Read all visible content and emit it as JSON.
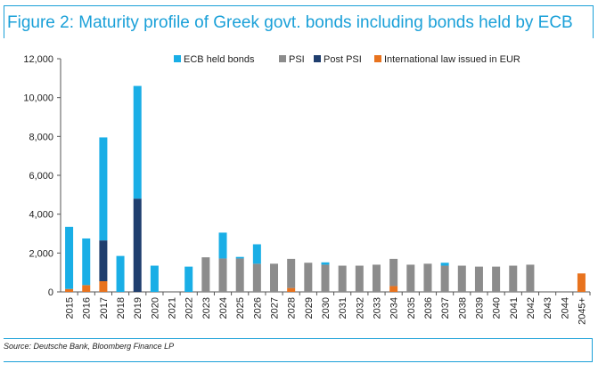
{
  "title": "Figure 2: Maturity profile of Greek govt. bonds including bonds held by ECB",
  "source": "Source: Deutsche Bank, Bloomberg Finance LP",
  "colors": {
    "accent": "#1aa0d8",
    "ecb": "#19aee6",
    "psi": "#8c8c8c",
    "post_psi": "#1f3e6e",
    "intl": "#e8731e",
    "axis": "#555555"
  },
  "chart_data": {
    "type": "bar",
    "stacked": true,
    "title": "Figure 2: Maturity profile of Greek govt. bonds including bonds held by ECB",
    "xlabel": "",
    "ylabel": "",
    "ylim": [
      0,
      12000
    ],
    "yticks": [
      0,
      2000,
      4000,
      6000,
      8000,
      10000,
      12000
    ],
    "ytick_labels": [
      "0",
      "2,000",
      "4,000",
      "6,000",
      "8,000",
      "10,000",
      "12,000"
    ],
    "grid": false,
    "legend_position": "top-right",
    "categories": [
      "2015",
      "2016",
      "2017",
      "2018",
      "2019",
      "2020",
      "2021",
      "2022",
      "2023",
      "2024",
      "2025",
      "2026",
      "2027",
      "2028",
      "2029",
      "2030",
      "2031",
      "2032",
      "2033",
      "2034",
      "2035",
      "2036",
      "2037",
      "2038",
      "2039",
      "2040",
      "2041",
      "2042",
      "2043",
      "2044",
      "2045+"
    ],
    "series": [
      {
        "name": "International law issued in EUR",
        "color_key": "intl",
        "values": [
          150,
          350,
          550,
          0,
          0,
          0,
          0,
          0,
          0,
          0,
          0,
          0,
          0,
          200,
          0,
          0,
          0,
          0,
          0,
          300,
          0,
          0,
          0,
          0,
          0,
          0,
          0,
          0,
          0,
          0,
          950
        ]
      },
      {
        "name": "Post PSI",
        "color_key": "post_psi",
        "values": [
          0,
          0,
          2100,
          0,
          4800,
          0,
          0,
          0,
          0,
          0,
          0,
          0,
          0,
          0,
          0,
          0,
          0,
          0,
          0,
          0,
          0,
          0,
          0,
          0,
          0,
          0,
          0,
          0,
          0,
          0,
          0
        ]
      },
      {
        "name": "PSI",
        "color_key": "psi",
        "values": [
          0,
          0,
          0,
          0,
          0,
          0,
          0,
          0,
          1780,
          1720,
          1720,
          1450,
          1450,
          1500,
          1500,
          1400,
          1350,
          1350,
          1400,
          1400,
          1400,
          1450,
          1350,
          1350,
          1300,
          1300,
          1350,
          1400,
          0,
          0,
          0
        ]
      },
      {
        "name": "ECB held bonds",
        "color_key": "ecb",
        "values": [
          3200,
          2400,
          5300,
          1850,
          5800,
          1350,
          0,
          1300,
          0,
          1330,
          80,
          1000,
          0,
          0,
          0,
          120,
          0,
          0,
          0,
          0,
          0,
          0,
          150,
          0,
          0,
          0,
          0,
          0,
          0,
          0,
          0
        ]
      }
    ],
    "legend": [
      {
        "label": "ECB held bonds",
        "color_key": "ecb"
      },
      {
        "label": "PSI",
        "color_key": "psi"
      },
      {
        "label": "Post PSI",
        "color_key": "post_psi"
      },
      {
        "label": "International law issued in EUR",
        "color_key": "intl"
      }
    ]
  }
}
